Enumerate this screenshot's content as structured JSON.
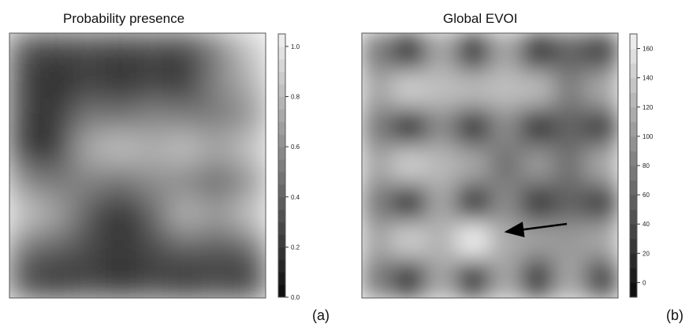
{
  "chart_data": [
    {
      "type": "heatmap",
      "title": "Probability presence",
      "panel_label": "(a)",
      "grid": [
        [
          0.3,
          0.25,
          0.3,
          0.25,
          0.3,
          0.25,
          0.5,
          0.85
        ],
        [
          0.25,
          0.15,
          0.25,
          0.15,
          0.25,
          0.15,
          0.55,
          0.75
        ],
        [
          0.25,
          0.2,
          0.5,
          0.45,
          0.55,
          0.5,
          0.5,
          0.6
        ],
        [
          0.2,
          0.15,
          0.75,
          0.85,
          0.75,
          0.85,
          0.7,
          0.85
        ],
        [
          0.55,
          0.5,
          0.55,
          0.45,
          0.6,
          0.55,
          0.4,
          0.6
        ],
        [
          0.85,
          0.7,
          0.35,
          0.1,
          0.4,
          0.8,
          0.65,
          0.85
        ],
        [
          0.45,
          0.4,
          0.3,
          0.2,
          0.3,
          0.4,
          0.35,
          0.4
        ],
        [
          0.25,
          0.15,
          0.25,
          0.15,
          0.25,
          0.15,
          0.25,
          0.15
        ]
      ],
      "colorbar": {
        "range": [
          0.0,
          1.05
        ],
        "ticks": [
          "0.0",
          "0.2",
          "0.4",
          "0.6",
          "0.8",
          "1.0"
        ],
        "tick_values": [
          0.0,
          0.2,
          0.4,
          0.6,
          0.8,
          1.0
        ],
        "levels": 21,
        "low_color": "#0a0a0a",
        "high_color": "#f2f2f2"
      }
    },
    {
      "type": "heatmap",
      "title": "Global EVOI",
      "panel_label": "(b)",
      "grid": [
        [
          80,
          30,
          110,
          30,
          110,
          30,
          60,
          40
        ],
        [
          110,
          140,
          130,
          125,
          130,
          125,
          80,
          110
        ],
        [
          80,
          30,
          90,
          30,
          90,
          30,
          60,
          40
        ],
        [
          110,
          140,
          125,
          110,
          70,
          100,
          70,
          110
        ],
        [
          80,
          30,
          110,
          30,
          90,
          30,
          60,
          40
        ],
        [
          110,
          140,
          120,
          165,
          115,
          105,
          100,
          110
        ],
        [
          80,
          30,
          110,
          30,
          110,
          30,
          110,
          40
        ]
      ],
      "colorbar": {
        "range": [
          -10,
          170
        ],
        "ticks": [
          "0",
          "20",
          "40",
          "60",
          "80",
          "100",
          "120",
          "140",
          "160"
        ],
        "tick_values": [
          0,
          20,
          40,
          60,
          80,
          100,
          120,
          140,
          160
        ],
        "levels": 18,
        "low_color": "#0a0a0a",
        "high_color": "#f2f2f2"
      },
      "annotation": {
        "type": "arrow",
        "points_to": "highest EVOI cell"
      }
    }
  ]
}
